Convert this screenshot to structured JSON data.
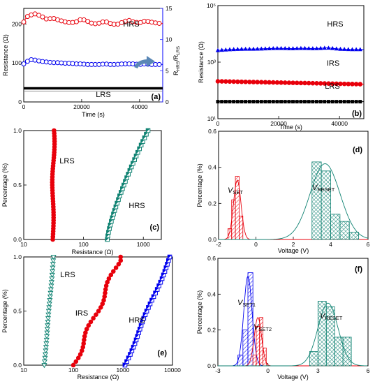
{
  "chart_data": [
    {
      "id": "a",
      "type": "line",
      "panel_label": "(a)",
      "xlabel": "Time (s)",
      "ylabel": "Resistance (Ω)",
      "ylabel2": "R_HRS/R_LRS",
      "xlim": [
        0,
        48000
      ],
      "ylim": [
        0,
        240
      ],
      "ylim2": [
        0,
        15
      ],
      "xticks": [
        "0",
        "20000",
        "40000"
      ],
      "yticks": [
        "0",
        "100",
        "200"
      ],
      "y2ticks": [
        "0",
        "5",
        "10",
        "15"
      ],
      "annotations": [
        "HRS",
        "LRS"
      ],
      "colors": {
        "hrs": "#e8000b",
        "ratio": "#0000ee",
        "lrs": "#000000",
        "axis2": "#2b2bff",
        "arrow": "#5a87b6"
      },
      "series": [
        {
          "name": "HRS",
          "axis": "left",
          "marker": "open-circle",
          "x": [
            0,
            1000,
            2000,
            4000,
            6000,
            8000,
            10000,
            12000,
            14000,
            16000,
            18000,
            20000,
            22000,
            24000,
            26000,
            28000,
            30000,
            32000,
            34000,
            36000,
            38000,
            40000,
            42000,
            44000,
            46000,
            48000
          ],
          "y": [
            205,
            218,
            222,
            226,
            220,
            212,
            215,
            210,
            206,
            203,
            205,
            213,
            207,
            200,
            202,
            207,
            201,
            198,
            204,
            210,
            205,
            203,
            208,
            205,
            202,
            201
          ]
        },
        {
          "name": "ratio",
          "axis": "right",
          "marker": "open-circle",
          "x": [
            0,
            1000,
            2000,
            4000,
            6000,
            8000,
            10000,
            12000,
            14000,
            16000,
            18000,
            20000,
            22000,
            24000,
            26000,
            28000,
            30000,
            32000,
            34000,
            36000,
            38000,
            40000,
            42000,
            44000,
            46000,
            48000
          ],
          "y": [
            6.1,
            6.4,
            6.8,
            6.7,
            6.5,
            6.4,
            6.3,
            6.3,
            6.2,
            6.2,
            6.1,
            6.1,
            6.0,
            6.0,
            6.0,
            6.1,
            6.0,
            6.0,
            6.1,
            6.1,
            6.1,
            6.0,
            6.1,
            6.0,
            6.0,
            6.0
          ]
        },
        {
          "name": "LRS",
          "axis": "left",
          "marker": "filled-square",
          "x": [
            0,
            48000
          ],
          "y": [
            35,
            35
          ]
        }
      ]
    },
    {
      "id": "b",
      "type": "line",
      "panel_label": "(b)",
      "xlabel": "Time (s)",
      "ylabel": "Resistance (Ω)",
      "log_y": true,
      "xlim": [
        0,
        48000
      ],
      "ylim": [
        10,
        100000
      ],
      "xticks": [
        "0",
        "20000",
        "40000"
      ],
      "yticks": [
        "10¹",
        "10³",
        "10⁵"
      ],
      "annotations": [
        "HRS",
        "IRS",
        "LRS"
      ],
      "colors": {
        "hrs": "#0000ee",
        "irs": "#e8000b",
        "lrs": "#000000"
      },
      "series": [
        {
          "name": "HRS",
          "marker": "triangle",
          "x": [
            0,
            4000,
            8000,
            12000,
            16000,
            20000,
            24000,
            28000,
            32000,
            36000,
            40000,
            44000,
            48000
          ],
          "y": [
            2600,
            2800,
            2900,
            2900,
            3000,
            3100,
            3000,
            3100,
            3000,
            3200,
            2900,
            2800,
            2800
          ]
        },
        {
          "name": "IRS",
          "marker": "filled-circle",
          "x": [
            0,
            48000
          ],
          "y": [
            210,
            165
          ]
        },
        {
          "name": "LRS",
          "marker": "filled-square",
          "x": [
            0,
            48000
          ],
          "y": [
            40,
            40
          ]
        }
      ]
    },
    {
      "id": "c",
      "type": "scatter",
      "panel_label": "(c)",
      "xlabel": "Resistance (Ω)",
      "ylabel": "Percentage (%)",
      "log_x": true,
      "xlim": [
        10,
        2000
      ],
      "ylim": [
        0,
        1
      ],
      "xticks": [
        "10",
        "100",
        "1000"
      ],
      "yticks": [
        "0.0",
        "0.5",
        "1.0"
      ],
      "annotations": [
        "LRS",
        "HRS"
      ],
      "colors": {
        "lrs": "#e8000b",
        "hrs": "#0f8272"
      },
      "series": [
        {
          "name": "LRS",
          "marker": "filled-circle",
          "x_range": [
            30,
            33
          ]
        },
        {
          "name": "HRS",
          "marker": "half-square",
          "x_range": [
            250,
            1200
          ]
        }
      ]
    },
    {
      "id": "d",
      "type": "bar",
      "panel_label": "(d)",
      "xlabel": "Voltage (V)",
      "ylabel": "Percentage (%)",
      "xlim": [
        -2,
        6
      ],
      "ylim": [
        0,
        0.6
      ],
      "xticks": [
        "-2",
        "0",
        "2",
        "4",
        "6"
      ],
      "yticks": [
        "0.0",
        "0.2",
        "0.4",
        "0.6"
      ],
      "annotations": [
        "V_SET",
        "V_RESET"
      ],
      "colors": {
        "set": "#e8000b",
        "reset": "#0f8272"
      },
      "series": [
        {
          "name": "V_SET",
          "bin_edges": [
            -1.5,
            -1.3,
            -1.1,
            -0.9,
            -0.7
          ],
          "values": [
            0.06,
            0.22,
            0.35,
            0.13
          ],
          "fit": {
            "mean": -1.0,
            "sd": 0.2,
            "peak": 0.33
          }
        },
        {
          "name": "V_RESET",
          "bin_edges": [
            3.0,
            3.5,
            4.0,
            4.5,
            5.0,
            5.5
          ],
          "values": [
            0.43,
            0.38,
            0.14,
            0.1,
            0.04
          ],
          "fit": {
            "mean": 3.7,
            "sd": 0.8,
            "peak": 0.42
          }
        }
      ]
    },
    {
      "id": "e",
      "type": "scatter",
      "panel_label": "(e)",
      "xlabel": "Resistance (Ω)",
      "ylabel": "Percentage (%)",
      "log_x": true,
      "xlim": [
        10,
        10000
      ],
      "ylim": [
        0,
        1
      ],
      "xticks": [
        "10",
        "100",
        "1000",
        "10000"
      ],
      "yticks": [
        "0.0",
        "0.5",
        "1.0"
      ],
      "annotations": [
        "LRS",
        "IRS",
        "HRS"
      ],
      "colors": {
        "lrs": "#0f8272",
        "irs": "#e8000b",
        "hrs": "#0000ee"
      },
      "series": [
        {
          "name": "LRS",
          "marker": "triangle-down",
          "x_range": [
            26,
            40
          ]
        },
        {
          "name": "IRS",
          "marker": "filled-circle",
          "x_range": [
            100,
            900
          ]
        },
        {
          "name": "HRS",
          "marker": "half-square",
          "x_range": [
            1100,
            9000
          ]
        }
      ]
    },
    {
      "id": "f",
      "type": "bar",
      "panel_label": "(f)",
      "xlabel": "Voltage (V)",
      "ylabel": "Percentage (%)",
      "xlim": [
        -3,
        6
      ],
      "ylim": [
        0,
        0.6
      ],
      "xticks": [
        "-3",
        "0",
        "3",
        "6"
      ],
      "yticks": [
        "0.0",
        "0.2",
        "0.4",
        "0.6"
      ],
      "annotations": [
        "V_SET1",
        "V_SET2",
        "V_RESET"
      ],
      "colors": {
        "set1": "#0000ee",
        "set2": "#e8000b",
        "reset": "#0f8272"
      },
      "series": [
        {
          "name": "V_SET1",
          "bin_edges": [
            -1.8,
            -1.5,
            -1.2,
            -0.9
          ],
          "values": [
            0.06,
            0.2,
            0.52
          ],
          "fit": {
            "mean": -1.2,
            "sd": 0.25,
            "peak": 0.5
          }
        },
        {
          "name": "V_SET2",
          "bin_edges": [
            -0.9,
            -0.7,
            -0.5,
            -0.3,
            -0.1
          ],
          "values": [
            0.06,
            0.22,
            0.27,
            0.1
          ],
          "fit": {
            "mean": -0.6,
            "sd": 0.22,
            "peak": 0.27
          }
        },
        {
          "name": "V_RESET",
          "bin_edges": [
            2.5,
            3.0,
            3.5,
            4.0,
            4.5,
            5.0
          ],
          "values": [
            0.08,
            0.36,
            0.33,
            0.16,
            0.16
          ],
          "fit": {
            "mean": 3.6,
            "sd": 0.6,
            "peak": 0.35
          }
        }
      ]
    }
  ]
}
